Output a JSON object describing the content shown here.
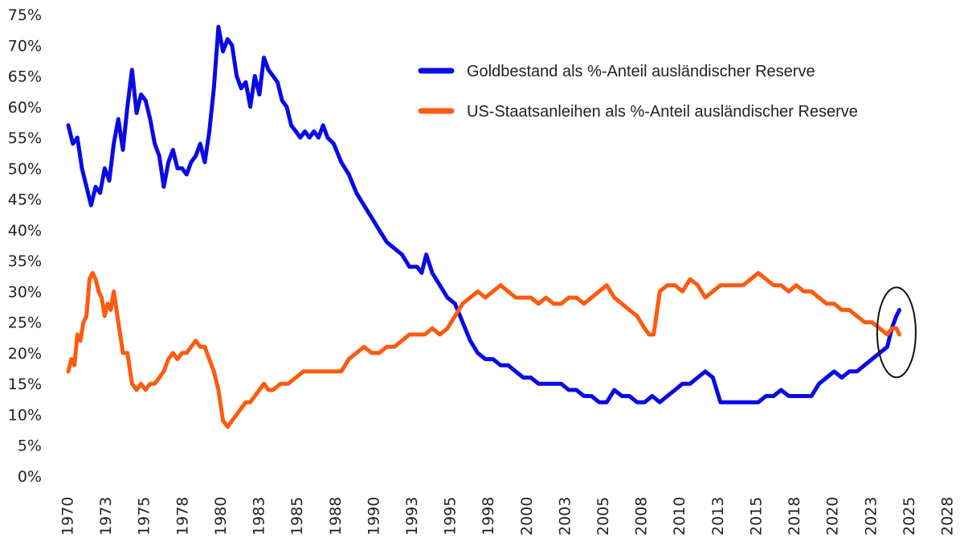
{
  "chart_data": {
    "type": "line",
    "title": "",
    "xlabel": "",
    "ylabel": "",
    "ylim": [
      0,
      75
    ],
    "xlim": [
      1970,
      2028
    ],
    "grid": false,
    "legend_position": "top-right",
    "y_ticks": [
      "0%",
      "5%",
      "10%",
      "15%",
      "20%",
      "25%",
      "30%",
      "35%",
      "40%",
      "45%",
      "50%",
      "55%",
      "60%",
      "65%",
      "70%",
      "75%"
    ],
    "y_tick_values": [
      0,
      5,
      10,
      15,
      20,
      25,
      30,
      35,
      40,
      45,
      50,
      55,
      60,
      65,
      70,
      75
    ],
    "x_ticks": [
      "1970",
      "1973",
      "1975",
      "1978",
      "1980",
      "1983",
      "1985",
      "1988",
      "1990",
      "1993",
      "1995",
      "1998",
      "2000",
      "2003",
      "2005",
      "2008",
      "2010",
      "2013",
      "2015",
      "2018",
      "2020",
      "2023",
      "2025",
      "2028"
    ],
    "x_tick_values": [
      1970,
      1972.5,
      1975,
      1977.5,
      1980,
      1982.5,
      1985,
      1987.5,
      1990,
      1992.5,
      1995,
      1997.5,
      2000,
      2002.5,
      2005,
      2007.5,
      2010,
      2012.5,
      2015,
      2017.5,
      2020,
      2022.5,
      2025,
      2027.5
    ],
    "series": [
      {
        "name": "Goldbestand als %-Anteil ausländischer Reserve",
        "color": "#0a0ae6",
        "x": [
          1970.0,
          1970.3,
          1970.6,
          1970.9,
          1971.2,
          1971.5,
          1971.8,
          1972.1,
          1972.4,
          1972.7,
          1973.0,
          1973.3,
          1973.6,
          1973.9,
          1974.2,
          1974.5,
          1974.8,
          1975.1,
          1975.4,
          1975.7,
          1976.0,
          1976.3,
          1976.6,
          1976.9,
          1977.2,
          1977.5,
          1977.8,
          1978.1,
          1978.4,
          1978.7,
          1979.0,
          1979.3,
          1979.6,
          1979.9,
          1980.2,
          1980.5,
          1980.8,
          1981.1,
          1981.4,
          1981.7,
          1982.0,
          1982.3,
          1982.6,
          1982.9,
          1983.2,
          1983.5,
          1983.8,
          1984.1,
          1984.4,
          1984.7,
          1985.0,
          1985.3,
          1985.6,
          1985.9,
          1986.2,
          1986.5,
          1986.8,
          1987.1,
          1987.5,
          1988.0,
          1988.5,
          1989.0,
          1989.5,
          1990.0,
          1990.5,
          1991.0,
          1991.5,
          1992.0,
          1992.5,
          1993.0,
          1993.3,
          1993.6,
          1994.0,
          1994.5,
          1995.0,
          1995.5,
          1996.0,
          1996.5,
          1997.0,
          1997.5,
          1998.0,
          1998.5,
          1999.0,
          1999.5,
          2000.0,
          2000.5,
          2001.0,
          2001.5,
          2002.0,
          2002.5,
          2003.0,
          2003.5,
          2004.0,
          2004.5,
          2005.0,
          2005.5,
          2006.0,
          2006.5,
          2007.0,
          2007.5,
          2008.0,
          2008.5,
          2009.0,
          2009.5,
          2010.0,
          2010.5,
          2011.0,
          2011.5,
          2012.0,
          2012.5,
          2013.0,
          2013.5,
          2014.0,
          2014.5,
          2015.0,
          2015.5,
          2016.0,
          2016.5,
          2017.0,
          2017.5,
          2018.0,
          2018.5,
          2019.0,
          2019.5,
          2020.0,
          2020.5,
          2021.0,
          2021.5,
          2022.0,
          2022.5,
          2023.0,
          2023.5,
          2024.0,
          2024.3,
          2024.6,
          2024.8
        ],
        "values": [
          57,
          54,
          55,
          50,
          47,
          44,
          47,
          46,
          50,
          48,
          54,
          58,
          53,
          60,
          66,
          59,
          62,
          61,
          58,
          54,
          52,
          47,
          51,
          53,
          50,
          50,
          49,
          51,
          52,
          54,
          51,
          56,
          63,
          73,
          69,
          71,
          70,
          65,
          63,
          64,
          60,
          65,
          62,
          68,
          66,
          65,
          64,
          61,
          60,
          57,
          56,
          55,
          56,
          55,
          56,
          55,
          57,
          55,
          54,
          51,
          49,
          46,
          44,
          42,
          40,
          38,
          37,
          36,
          34,
          34,
          33,
          36,
          33,
          31,
          29,
          28,
          25,
          22,
          20,
          19,
          19,
          18,
          18,
          17,
          16,
          16,
          15,
          15,
          15,
          15,
          14,
          14,
          13,
          13,
          12,
          12,
          14,
          13,
          13,
          12,
          12,
          13,
          12,
          13,
          14,
          15,
          15,
          16,
          17,
          16,
          12,
          12,
          12,
          12,
          12,
          12,
          13,
          13,
          14,
          13,
          13,
          13,
          13,
          15,
          16,
          17,
          16,
          17,
          17,
          18,
          19,
          20,
          21,
          24,
          26,
          27
        ]
      },
      {
        "name": "US-Staatsanleihen als %-Anteil ausländischer Reserve",
        "color": "#ff5a0f",
        "x": [
          1970.0,
          1970.2,
          1970.4,
          1970.6,
          1970.8,
          1971.0,
          1971.2,
          1971.4,
          1971.6,
          1971.8,
          1972.0,
          1972.2,
          1972.4,
          1972.6,
          1972.8,
          1973.0,
          1973.3,
          1973.6,
          1973.9,
          1974.2,
          1974.5,
          1974.8,
          1975.1,
          1975.4,
          1975.7,
          1976.0,
          1976.3,
          1976.6,
          1976.9,
          1977.2,
          1977.5,
          1977.8,
          1978.1,
          1978.4,
          1978.7,
          1979.0,
          1979.3,
          1979.6,
          1979.9,
          1980.2,
          1980.5,
          1980.8,
          1981.1,
          1981.4,
          1981.7,
          1982.0,
          1982.3,
          1982.6,
          1982.9,
          1983.2,
          1983.5,
          1984.0,
          1984.5,
          1985.0,
          1985.5,
          1986.0,
          1986.5,
          1987.0,
          1987.5,
          1988.0,
          1988.5,
          1989.0,
          1989.5,
          1990.0,
          1990.5,
          1991.0,
          1991.5,
          1992.0,
          1992.5,
          1993.0,
          1993.5,
          1994.0,
          1994.5,
          1995.0,
          1995.5,
          1996.0,
          1996.5,
          1997.0,
          1997.5,
          1998.0,
          1998.5,
          1999.0,
          1999.5,
          2000.0,
          2000.5,
          2001.0,
          2001.5,
          2002.0,
          2002.5,
          2003.0,
          2003.5,
          2004.0,
          2004.5,
          2005.0,
          2005.5,
          2006.0,
          2006.5,
          2007.0,
          2007.5,
          2008.0,
          2008.3,
          2008.6,
          2009.0,
          2009.5,
          2010.0,
          2010.5,
          2011.0,
          2011.5,
          2012.0,
          2012.5,
          2013.0,
          2013.5,
          2014.0,
          2014.5,
          2015.0,
          2015.5,
          2016.0,
          2016.5,
          2017.0,
          2017.5,
          2018.0,
          2018.5,
          2019.0,
          2019.5,
          2020.0,
          2020.5,
          2021.0,
          2021.5,
          2022.0,
          2022.5,
          2023.0,
          2023.5,
          2024.0,
          2024.3,
          2024.6,
          2024.8
        ],
        "values": [
          17,
          19,
          18,
          23,
          22,
          25,
          26,
          32,
          33,
          32,
          30,
          29,
          26,
          28,
          27,
          30,
          25,
          20,
          20,
          15,
          14,
          15,
          14,
          15,
          15,
          16,
          17,
          19,
          20,
          19,
          20,
          20,
          21,
          22,
          21,
          21,
          19,
          17,
          14,
          9,
          8,
          9,
          10,
          11,
          12,
          12,
          13,
          14,
          15,
          14,
          14,
          15,
          15,
          16,
          17,
          17,
          17,
          17,
          17,
          17,
          19,
          20,
          21,
          20,
          20,
          21,
          21,
          22,
          23,
          23,
          23,
          24,
          23,
          24,
          26,
          28,
          29,
          30,
          29,
          30,
          31,
          30,
          29,
          29,
          29,
          28,
          29,
          28,
          28,
          29,
          29,
          28,
          29,
          30,
          31,
          29,
          28,
          27,
          26,
          24,
          23,
          23,
          30,
          31,
          31,
          30,
          32,
          31,
          29,
          30,
          31,
          31,
          31,
          31,
          32,
          33,
          32,
          31,
          31,
          30,
          31,
          30,
          30,
          29,
          28,
          28,
          27,
          27,
          26,
          25,
          25,
          24,
          23,
          24,
          24,
          23
        ]
      }
    ],
    "annotations": [
      {
        "type": "ellipse",
        "description": "Highlight where gold share crosses above US Treasuries share",
        "x": 2024.5,
        "y": 24,
        "color": "#111111"
      }
    ]
  }
}
